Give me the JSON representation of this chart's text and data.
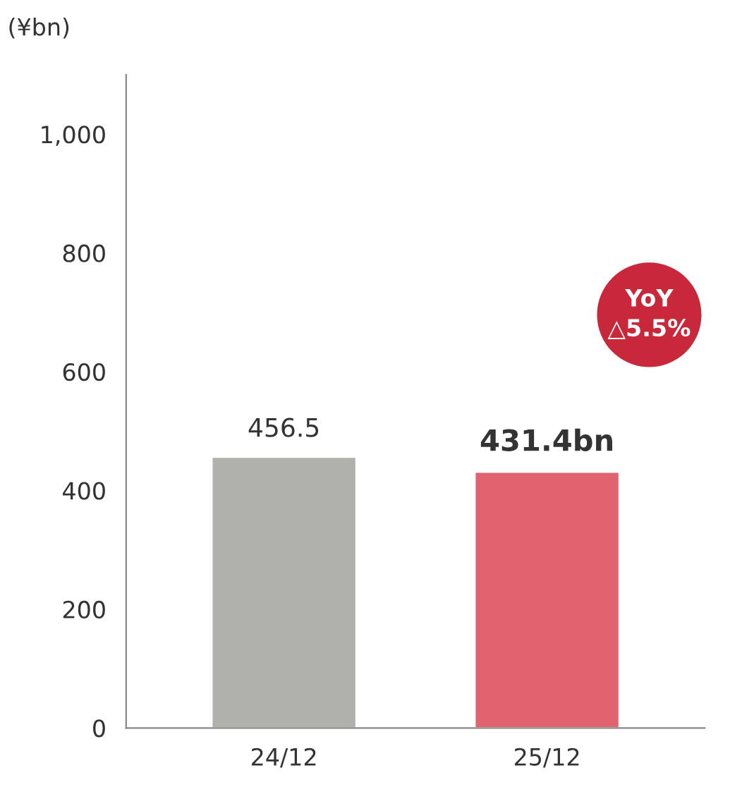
{
  "chart_data": {
    "type": "bar",
    "ylabel": "(¥bn)",
    "categories": [
      "24/12",
      "25/12"
    ],
    "values": [
      456.5,
      431.4
    ],
    "colors": [
      "#b1b1ab",
      "#e0636f"
    ],
    "value_labels": [
      "456.5",
      "431.4bn"
    ],
    "ylim": [
      0,
      1100
    ],
    "yticks": [
      0,
      200,
      400,
      600,
      800,
      {
        "value": 1000,
        "label": "1,000"
      }
    ],
    "annotations": [
      "YoY\n△5.5%"
    ],
    "grid": false
  }
}
